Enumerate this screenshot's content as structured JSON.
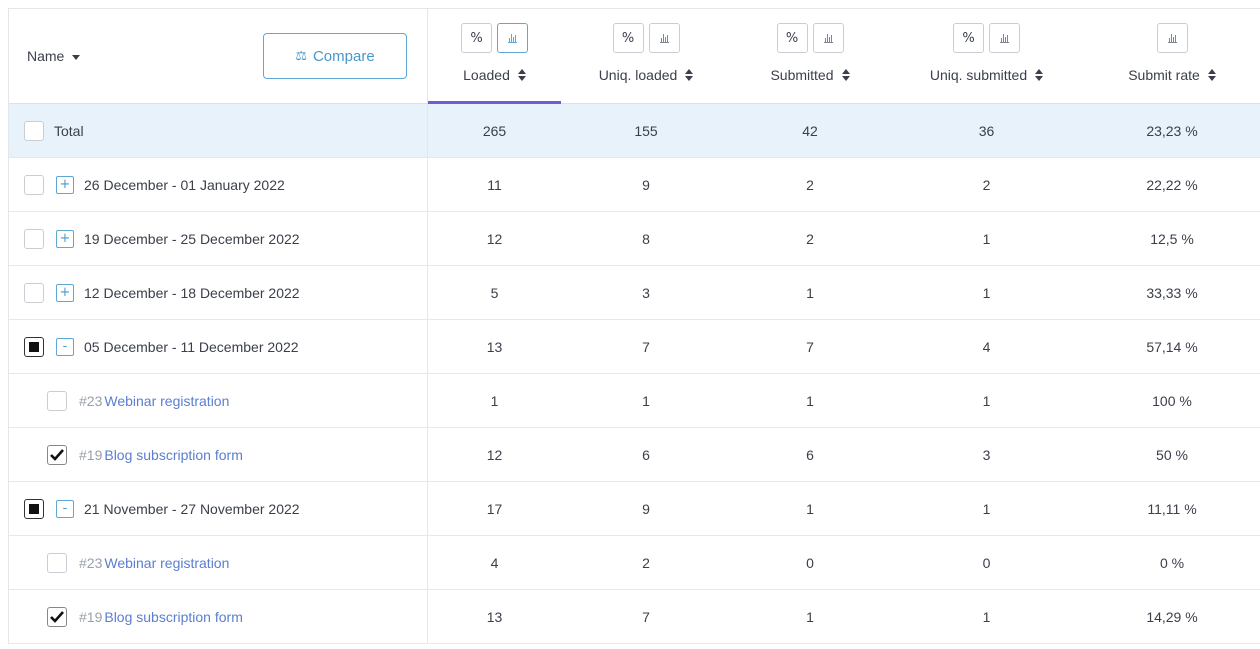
{
  "header": {
    "name_label": "Name",
    "compare_label": "Compare",
    "pct_label": "%",
    "columns": [
      {
        "label": "Loaded",
        "has_pct": true,
        "active_chart": true
      },
      {
        "label": "Uniq. loaded",
        "has_pct": true
      },
      {
        "label": "Submitted",
        "has_pct": true
      },
      {
        "label": "Uniq. submitted",
        "has_pct": true
      },
      {
        "label": "Submit rate",
        "has_pct": false
      }
    ],
    "accent_color": "#6d5fd1",
    "link_color": "#5b7ecf"
  },
  "total": {
    "label": "Total",
    "values": [
      "265",
      "155",
      "42",
      "36",
      "23,23 %"
    ]
  },
  "rows": [
    {
      "label": "26 December - 01 January 2022",
      "values": [
        "11",
        "9",
        "2",
        "2",
        "22,22 %"
      ],
      "expander": "+"
    },
    {
      "label": "19 December - 25 December 2022",
      "values": [
        "12",
        "8",
        "2",
        "1",
        "12,5 %"
      ],
      "expander": "+"
    },
    {
      "label": "12 December - 18 December 2022",
      "values": [
        "5",
        "3",
        "1",
        "1",
        "33,33 %"
      ],
      "expander": "+"
    },
    {
      "label": "05 December - 11 December 2022",
      "values": [
        "13",
        "7",
        "7",
        "4",
        "57,14 %"
      ],
      "expander": "-"
    },
    {
      "form_id": "#23",
      "form_name": "Webinar registration",
      "values": [
        "1",
        "1",
        "1",
        "1",
        "100 %"
      ]
    },
    {
      "form_id": "#19",
      "form_name": "Blog subscription form",
      "values": [
        "12",
        "6",
        "6",
        "3",
        "50 %"
      ]
    },
    {
      "label": "21 November - 27 November 2022",
      "values": [
        "17",
        "9",
        "1",
        "1",
        "11,11 %"
      ],
      "expander": "-"
    },
    {
      "form_id": "#23",
      "form_name": "Webinar registration",
      "values": [
        "4",
        "2",
        "0",
        "0",
        "0 %"
      ]
    },
    {
      "form_id": "#19",
      "form_name": "Blog subscription form",
      "values": [
        "13",
        "7",
        "1",
        "1",
        "14,29 %"
      ]
    }
  ]
}
